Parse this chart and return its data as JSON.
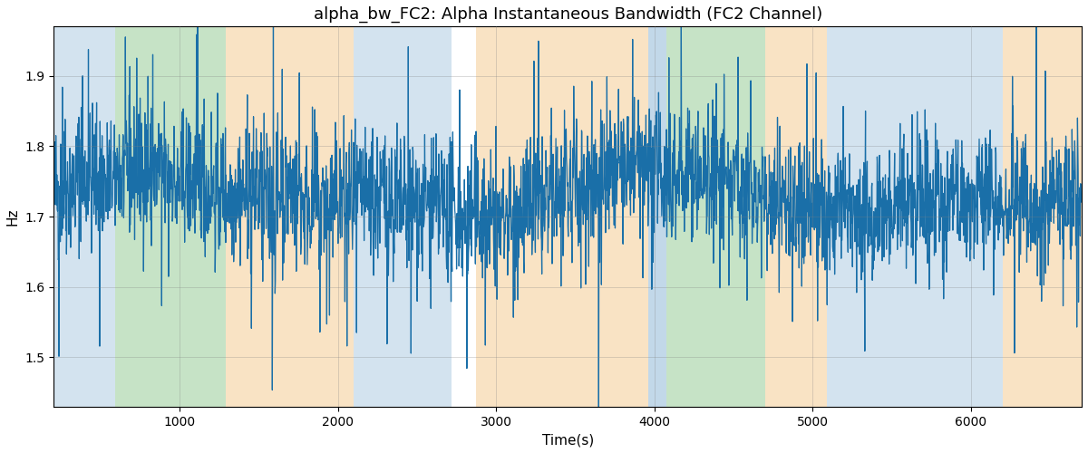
{
  "title": "alpha_bw_FC2: Alpha Instantaneous Bandwidth (FC2 Channel)",
  "xlabel": "Time(s)",
  "ylabel": "Hz",
  "xlim": [
    205,
    6700
  ],
  "ylim": [
    1.43,
    1.97
  ],
  "yticks": [
    1.5,
    1.6,
    1.7,
    1.8,
    1.9
  ],
  "line_color": "#1a6fa8",
  "line_width": 0.9,
  "background_regions": [
    {
      "xmin": 205,
      "xmax": 595,
      "color": "#a8c8e0",
      "alpha": 0.5
    },
    {
      "xmin": 595,
      "xmax": 1290,
      "color": "#8ec98e",
      "alpha": 0.5
    },
    {
      "xmin": 1290,
      "xmax": 2100,
      "color": "#f5c98a",
      "alpha": 0.5
    },
    {
      "xmin": 2100,
      "xmax": 2720,
      "color": "#a8c8e0",
      "alpha": 0.5
    },
    {
      "xmin": 2720,
      "xmax": 2870,
      "color": "#ffffff",
      "alpha": 0.0
    },
    {
      "xmin": 2870,
      "xmax": 3960,
      "color": "#f5c98a",
      "alpha": 0.5
    },
    {
      "xmin": 3960,
      "xmax": 4075,
      "color": "#a8c8e0",
      "alpha": 0.7
    },
    {
      "xmin": 4075,
      "xmax": 4700,
      "color": "#8ec98e",
      "alpha": 0.5
    },
    {
      "xmin": 4700,
      "xmax": 5090,
      "color": "#f5c98a",
      "alpha": 0.5
    },
    {
      "xmin": 5090,
      "xmax": 6200,
      "color": "#a8c8e0",
      "alpha": 0.5
    },
    {
      "xmin": 6200,
      "xmax": 6700,
      "color": "#f5c98a",
      "alpha": 0.5
    }
  ],
  "seed": 42,
  "n_points": 3000,
  "x_start": 205,
  "x_end": 6695,
  "mean": 1.73,
  "title_fontsize": 13,
  "label_fontsize": 11,
  "figsize": [
    12.0,
    5.0
  ],
  "dpi": 100
}
